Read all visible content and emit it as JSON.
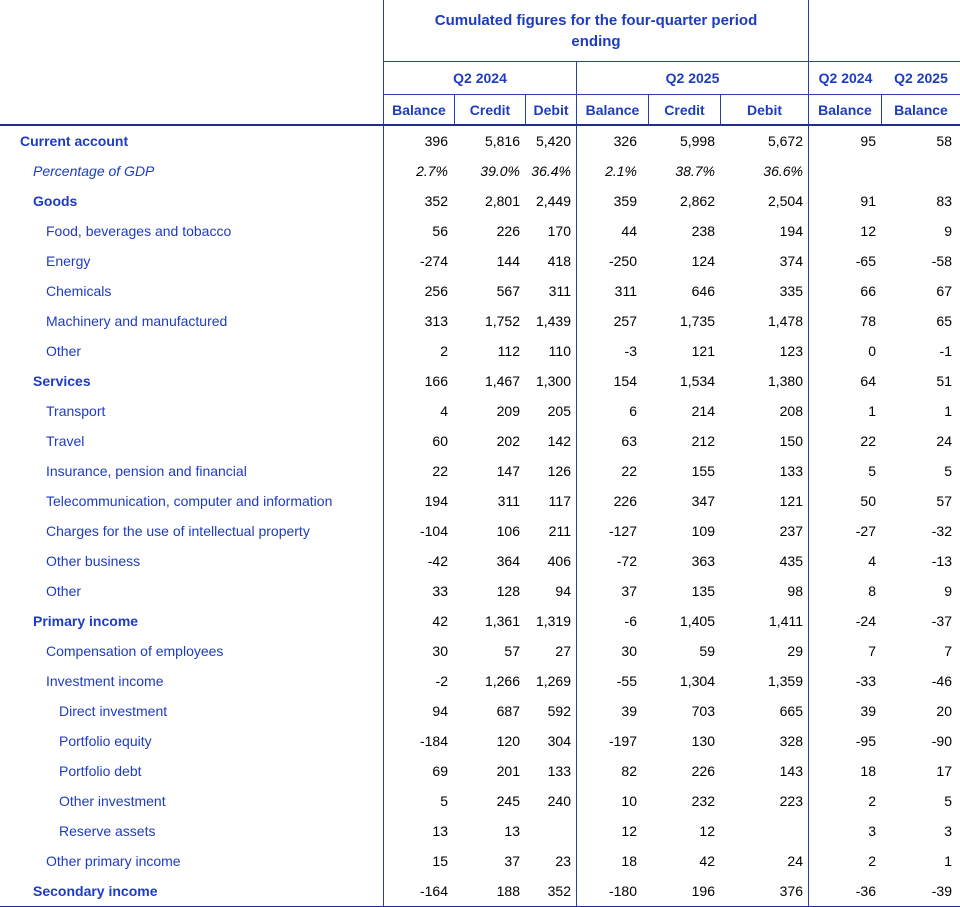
{
  "header": {
    "title": "Cumulated figures for the four-quarter period ending",
    "group1_label": "Q2 2024",
    "group2_label": "Q2 2025",
    "right_group1_label": "Q2 2024",
    "right_group2_label": "Q2 2025",
    "subcols": [
      "Balance",
      "Credit",
      "Debit",
      "Balance",
      "Credit",
      "Debit",
      "Balance",
      "Balance"
    ]
  },
  "colors": {
    "text_blue": "#1e3bc3",
    "border_blue": "#2c3fae",
    "thick_border_blue": "#1e2d8f",
    "number_black": "#000000"
  },
  "rows": [
    {
      "label": "Current account",
      "level": 0,
      "style": "bold",
      "values": [
        "396",
        "5,816",
        "5,420",
        "326",
        "5,998",
        "5,672",
        "95",
        "58"
      ]
    },
    {
      "label": "Percentage of GDP",
      "level": 1,
      "style": "italic",
      "values": [
        "2.7%",
        "39.0%",
        "36.4%",
        "2.1%",
        "38.7%",
        "36.6%",
        "",
        ""
      ]
    },
    {
      "label": "Goods",
      "level": 1,
      "style": "bold",
      "values": [
        "352",
        "2,801",
        "2,449",
        "359",
        "2,862",
        "2,504",
        "91",
        "83"
      ]
    },
    {
      "label": "Food, beverages and tobacco",
      "level": 2,
      "style": "normal",
      "values": [
        "56",
        "226",
        "170",
        "44",
        "238",
        "194",
        "12",
        "9"
      ]
    },
    {
      "label": "Energy",
      "level": 2,
      "style": "normal",
      "values": [
        "-274",
        "144",
        "418",
        "-250",
        "124",
        "374",
        "-65",
        "-58"
      ]
    },
    {
      "label": "Chemicals",
      "level": 2,
      "style": "normal",
      "values": [
        "256",
        "567",
        "311",
        "311",
        "646",
        "335",
        "66",
        "67"
      ]
    },
    {
      "label": "Machinery and manufactured",
      "level": 2,
      "style": "normal",
      "values": [
        "313",
        "1,752",
        "1,439",
        "257",
        "1,735",
        "1,478",
        "78",
        "65"
      ]
    },
    {
      "label": "Other",
      "level": 2,
      "style": "normal",
      "values": [
        "2",
        "112",
        "110",
        "-3",
        "121",
        "123",
        "0",
        "-1"
      ]
    },
    {
      "label": "Services",
      "level": 1,
      "style": "bold",
      "values": [
        "166",
        "1,467",
        "1,300",
        "154",
        "1,534",
        "1,380",
        "64",
        "51"
      ]
    },
    {
      "label": "Transport",
      "level": 2,
      "style": "normal",
      "values": [
        "4",
        "209",
        "205",
        "6",
        "214",
        "208",
        "1",
        "1"
      ]
    },
    {
      "label": "Travel",
      "level": 2,
      "style": "normal",
      "values": [
        "60",
        "202",
        "142",
        "63",
        "212",
        "150",
        "22",
        "24"
      ]
    },
    {
      "label": "Insurance, pension and financial",
      "level": 2,
      "style": "normal",
      "values": [
        "22",
        "147",
        "126",
        "22",
        "155",
        "133",
        "5",
        "5"
      ]
    },
    {
      "label": "Telecommunication, computer and information",
      "level": 2,
      "style": "normal",
      "values": [
        "194",
        "311",
        "117",
        "226",
        "347",
        "121",
        "50",
        "57"
      ]
    },
    {
      "label": "Charges for the use of intellectual property",
      "level": 2,
      "style": "normal",
      "values": [
        "-104",
        "106",
        "211",
        "-127",
        "109",
        "237",
        "-27",
        "-32"
      ]
    },
    {
      "label": "Other business",
      "level": 2,
      "style": "normal",
      "values": [
        "-42",
        "364",
        "406",
        "-72",
        "363",
        "435",
        "4",
        "-13"
      ]
    },
    {
      "label": "Other",
      "level": 2,
      "style": "normal",
      "values": [
        "33",
        "128",
        "94",
        "37",
        "135",
        "98",
        "8",
        "9"
      ]
    },
    {
      "label": "Primary income",
      "level": 1,
      "style": "bold",
      "values": [
        "42",
        "1,361",
        "1,319",
        "-6",
        "1,405",
        "1,411",
        "-24",
        "-37"
      ]
    },
    {
      "label": "Compensation of employees",
      "level": 2,
      "style": "normal",
      "values": [
        "30",
        "57",
        "27",
        "30",
        "59",
        "29",
        "7",
        "7"
      ]
    },
    {
      "label": "Investment income",
      "level": 2,
      "style": "normal",
      "values": [
        "-2",
        "1,266",
        "1,269",
        "-55",
        "1,304",
        "1,359",
        "-33",
        "-46"
      ]
    },
    {
      "label": "Direct investment",
      "level": 3,
      "style": "normal",
      "values": [
        "94",
        "687",
        "592",
        "39",
        "703",
        "665",
        "39",
        "20"
      ]
    },
    {
      "label": "Portfolio equity",
      "level": 3,
      "style": "normal",
      "values": [
        "-184",
        "120",
        "304",
        "-197",
        "130",
        "328",
        "-95",
        "-90"
      ]
    },
    {
      "label": "Portfolio debt",
      "level": 3,
      "style": "normal",
      "values": [
        "69",
        "201",
        "133",
        "82",
        "226",
        "143",
        "18",
        "17"
      ]
    },
    {
      "label": "Other investment",
      "level": 3,
      "style": "normal",
      "values": [
        "5",
        "245",
        "240",
        "10",
        "232",
        "223",
        "2",
        "5"
      ]
    },
    {
      "label": "Reserve assets",
      "level": 3,
      "style": "normal",
      "values": [
        "13",
        "13",
        "",
        "12",
        "12",
        "",
        "3",
        "3"
      ]
    },
    {
      "label": "Other primary income",
      "level": 2,
      "style": "normal",
      "values": [
        "15",
        "37",
        "23",
        "18",
        "42",
        "24",
        "2",
        "1"
      ]
    },
    {
      "label": "Secondary income",
      "level": 1,
      "style": "bold",
      "values": [
        "-164",
        "188",
        "352",
        "-180",
        "196",
        "376",
        "-36",
        "-39"
      ]
    }
  ]
}
